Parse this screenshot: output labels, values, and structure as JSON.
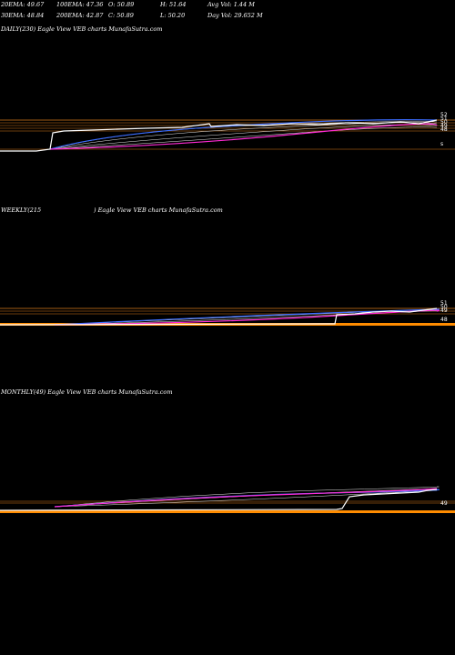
{
  "header": {
    "r1": [
      {
        "label": "20EMA:",
        "value": "49.67"
      },
      {
        "label": "100EMA:",
        "value": "47.36"
      },
      {
        "label": "O:",
        "value": "50.89"
      },
      {
        "label": "H:",
        "value": "51.64"
      },
      {
        "label": "Avg Vol:",
        "value": "1.44  M"
      }
    ],
    "r2": [
      {
        "label": "30EMA:",
        "value": "48.84"
      },
      {
        "label": "200EMA:",
        "value": "42.87"
      },
      {
        "label": "C:",
        "value": "50.89"
      },
      {
        "label": "L:",
        "value": "50.20"
      },
      {
        "label": "Day Vol:",
        "value": "29.652  M"
      }
    ]
  },
  "colors": {
    "price": "#ffffff",
    "ema_blue": "#3a6cff",
    "ema_magenta": "#ff2ad4",
    "ema_thin": "#e8e8e8",
    "guide_orange": "#d87a1a",
    "volume_orange": "#ff8c00"
  },
  "chart_data": [
    {
      "type": "line",
      "title": "DAILY(230) Eagle   View  VEB charts MunafaSutra.com",
      "right_ticks": [
        "52",
        "51",
        "50",
        "49",
        "48",
        "s"
      ],
      "price_at_end": 50.89,
      "gridlines": true
    },
    {
      "type": "line",
      "title_left": "WEEKLY(215",
      "title_right": ") Eagle   View  VEB charts MunafaSutra.com",
      "right_ticks": [
        "51",
        "50",
        "49",
        "48"
      ],
      "gridlines": true
    },
    {
      "type": "line",
      "title": "MONTHLY(49) Eagle   View  VEB charts MunafaSutra.com",
      "right_ticks": [
        "49"
      ],
      "gridlines": true
    }
  ]
}
